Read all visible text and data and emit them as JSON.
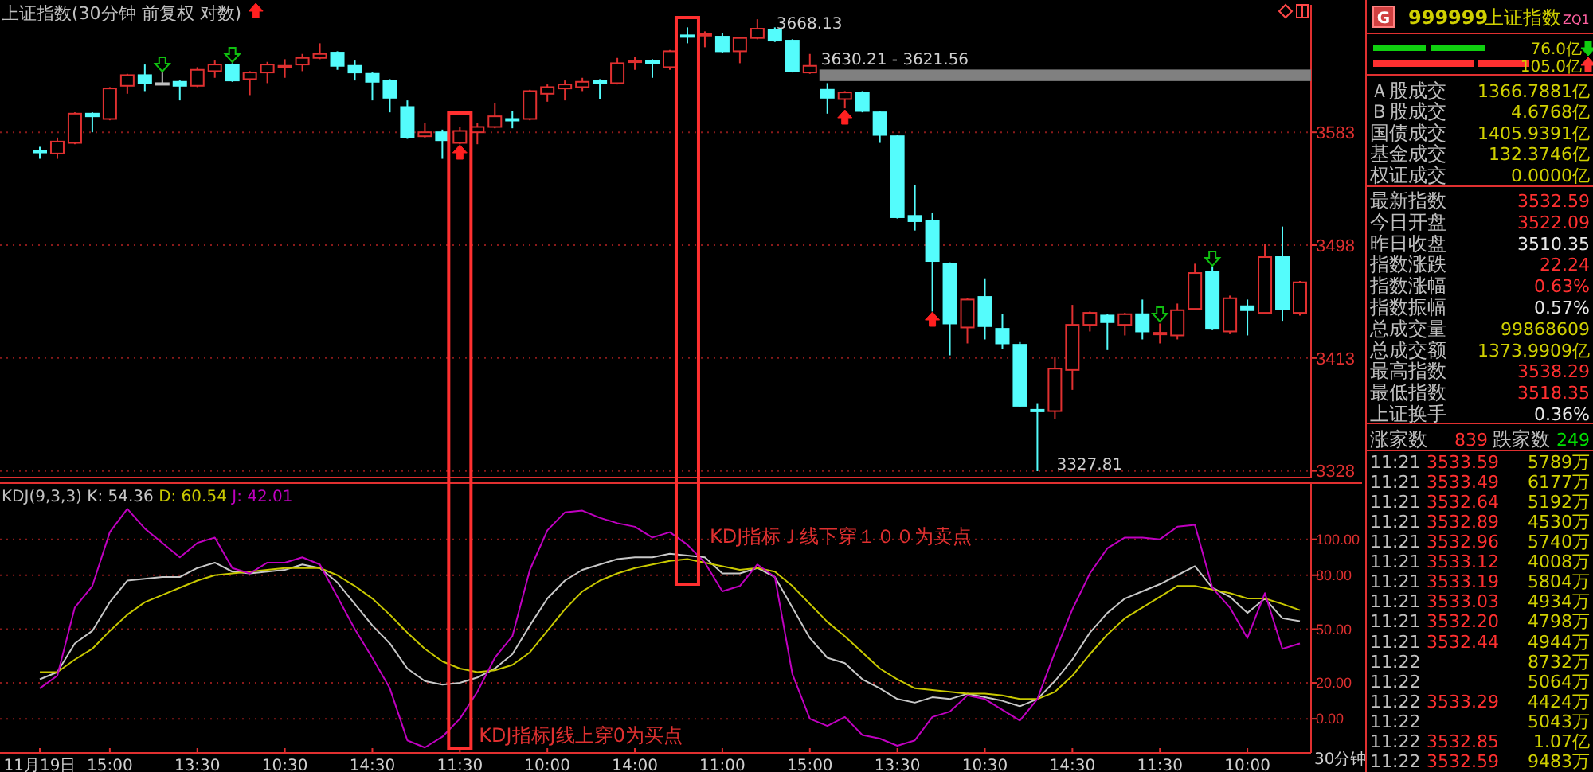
{
  "chart_data": [
    {
      "type": "candlestick",
      "title": "上证指数(30分钟 前复权 对数)",
      "categories": [
        null,
        null,
        null,
        null,
        null,
        null,
        null,
        null,
        null,
        null,
        null,
        null,
        null,
        null,
        null,
        null,
        null,
        null,
        null,
        null,
        null,
        null,
        null,
        null,
        null,
        null,
        null,
        null,
        null,
        null,
        null,
        null,
        null,
        null,
        null,
        null,
        null,
        null,
        null,
        null,
        null,
        null,
        null,
        null,
        null,
        null,
        null,
        null,
        null,
        null,
        null,
        null,
        null,
        null,
        null,
        null,
        null,
        null,
        null,
        null,
        null,
        null,
        null,
        null,
        null,
        null,
        null,
        null,
        null,
        null,
        null,
        null,
        null
      ],
      "ohlc": [
        [
          3569,
          3572,
          3563,
          3568
        ],
        [
          3567,
          3579,
          3563,
          3576
        ],
        [
          3575,
          3598,
          3574,
          3597
        ],
        [
          3597,
          3598,
          3583,
          3595
        ],
        [
          3593,
          3617,
          3592,
          3616
        ],
        [
          3618,
          3627,
          3612,
          3626
        ],
        [
          3626,
          3634,
          3614,
          3620
        ],
        [
          3620,
          3628,
          3620,
          3620
        ],
        [
          3621,
          3622,
          3607,
          3618
        ],
        [
          3618,
          3632,
          3617,
          3630
        ],
        [
          3629,
          3637,
          3624,
          3634
        ],
        [
          3634,
          3635,
          3621,
          3622
        ],
        [
          3623,
          3629,
          3611,
          3628
        ],
        [
          3628,
          3636,
          3620,
          3634
        ],
        [
          3632,
          3638,
          3624,
          3633
        ],
        [
          3634,
          3642,
          3629,
          3639
        ],
        [
          3639,
          3650,
          3638,
          3642
        ],
        [
          3643,
          3644,
          3630,
          3633
        ],
        [
          3633,
          3637,
          3622,
          3628
        ],
        [
          3627,
          3628,
          3607,
          3621
        ],
        [
          3622,
          3623,
          3598,
          3609
        ],
        [
          3602,
          3607,
          3578,
          3579
        ],
        [
          3580,
          3590,
          3579,
          3583
        ],
        [
          3583,
          3585,
          3563,
          3577
        ],
        [
          3575,
          3587,
          3574,
          3584
        ],
        [
          3583,
          3590,
          3574,
          3587
        ],
        [
          3587,
          3605,
          3586,
          3595
        ],
        [
          3593,
          3599,
          3586,
          3592
        ],
        [
          3593,
          3615,
          3592,
          3614
        ],
        [
          3612,
          3619,
          3606,
          3617
        ],
        [
          3616,
          3622,
          3607,
          3619
        ],
        [
          3617,
          3624,
          3614,
          3621
        ],
        [
          3622,
          3623,
          3608,
          3620
        ],
        [
          3620,
          3639,
          3619,
          3635
        ],
        [
          3636,
          3640,
          3630,
          3637
        ],
        [
          3637,
          3638,
          3624,
          3635
        ],
        [
          3632,
          3645,
          3630,
          3644
        ],
        [
          3656,
          3662,
          3650,
          3655
        ],
        [
          3656,
          3659,
          3647,
          3657
        ],
        [
          3655,
          3658,
          3643,
          3644
        ],
        [
          3644,
          3655,
          3635,
          3654
        ],
        [
          3654,
          3668.13,
          3653,
          3661
        ],
        [
          3660,
          3662,
          3651,
          3652
        ],
        [
          3652,
          3653,
          3628,
          3629
        ],
        [
          3628,
          3642,
          3627,
          3633
        ],
        [
          3615,
          3620,
          3597,
          3609
        ],
        [
          3608,
          3614,
          3601,
          3613
        ],
        [
          3613,
          3614,
          3598,
          3599
        ],
        [
          3598,
          3599,
          3575,
          3581
        ],
        [
          3580,
          3581,
          3518,
          3519
        ],
        [
          3520,
          3543,
          3509,
          3516
        ],
        [
          3516,
          3522,
          3448,
          3486
        ],
        [
          3484,
          3485,
          3415,
          3439
        ],
        [
          3436,
          3458,
          3424,
          3457
        ],
        [
          3459,
          3473,
          3427,
          3437
        ],
        [
          3435,
          3446,
          3420,
          3424
        ],
        [
          3423,
          3425,
          3376,
          3377
        ],
        [
          3374,
          3379,
          3327.81,
          3373
        ],
        [
          3373,
          3414,
          3367,
          3405
        ],
        [
          3404,
          3453,
          3389,
          3438
        ],
        [
          3438,
          3448,
          3433,
          3447
        ],
        [
          3445,
          3446,
          3419,
          3440
        ],
        [
          3438,
          3447,
          3430,
          3446
        ],
        [
          3446,
          3457,
          3427,
          3433
        ],
        [
          3431,
          3439,
          3424,
          3432
        ],
        [
          3430,
          3454,
          3427,
          3449
        ],
        [
          3450,
          3484,
          3449,
          3477
        ],
        [
          3478,
          3482,
          3434,
          3435
        ],
        [
          3433,
          3460,
          3431,
          3458
        ],
        [
          3452,
          3457,
          3430,
          3449
        ],
        [
          3447,
          3499,
          3446,
          3489
        ],
        [
          3489,
          3512,
          3441,
          3450
        ],
        [
          3447,
          3471,
          3445,
          3470
        ]
      ],
      "colors": [
        "#54fcfc",
        "#e03030",
        "#e03030",
        "#54fcfc",
        "#e03030",
        "#e03030",
        "#54fcfc",
        "#c0c0c0",
        "#54fcfc",
        "#e03030",
        "#e03030",
        "#54fcfc",
        "#e03030",
        "#e03030",
        "#e03030",
        "#e03030",
        "#e03030",
        "#54fcfc",
        "#54fcfc",
        "#54fcfc",
        "#54fcfc",
        "#54fcfc",
        "#e03030",
        "#54fcfc",
        "#e03030",
        "#e03030",
        "#e03030",
        "#54fcfc",
        "#e03030",
        "#e03030",
        "#e03030",
        "#e03030",
        "#54fcfc",
        "#e03030",
        "#e03030",
        "#54fcfc",
        "#e03030",
        "#54fcfc",
        "#e03030",
        "#54fcfc",
        "#e03030",
        "#e03030",
        "#54fcfc",
        "#54fcfc",
        "#e03030",
        "#54fcfc",
        "#e03030",
        "#54fcfc",
        "#54fcfc",
        "#54fcfc",
        "#54fcfc",
        "#54fcfc",
        "#54fcfc",
        "#e03030",
        "#54fcfc",
        "#54fcfc",
        "#54fcfc",
        "#54fcfc",
        "#e03030",
        "#e03030",
        "#e03030",
        "#54fcfc",
        "#e03030",
        "#54fcfc",
        "#e03030",
        "#e03030",
        "#e03030",
        "#54fcfc",
        "#e03030",
        "#54fcfc",
        "#e03030",
        "#54fcfc",
        "#e03030"
      ],
      "ylim": [
        3323,
        3679
      ],
      "yticks": [
        3328,
        3413,
        3498,
        3583
      ],
      "grid": "y",
      "tick_labels": "y",
      "bands": [
        {
          "axis": "y",
          "from": 3621.56,
          "to": 3630.21,
          "label": "3630.21 - 3621.56",
          "color": "#808080"
        }
      ],
      "annotations": [
        "3668.13",
        "3327.81"
      ]
    },
    {
      "type": "line",
      "legend_title": "KDJ(9,3,3)",
      "legend": "top left",
      "categories": [
        "11月19日",
        null,
        null,
        null,
        "15:00",
        null,
        null,
        null,
        null,
        "13:30",
        null,
        null,
        null,
        null,
        "10:30",
        null,
        null,
        null,
        null,
        "14:30",
        null,
        null,
        null,
        null,
        "11:30",
        null,
        null,
        null,
        null,
        "10:00",
        null,
        null,
        null,
        null,
        "14:00",
        null,
        null,
        null,
        null,
        "11:00",
        null,
        null,
        null,
        null,
        "15:00",
        null,
        null,
        null,
        null,
        "13:30",
        null,
        null,
        null,
        null,
        "10:30",
        null,
        null,
        null,
        null,
        "14:30",
        null,
        null,
        null,
        null,
        "11:30",
        null,
        null,
        null,
        null,
        "10:00",
        null,
        null,
        null
      ],
      "series": [
        {
          "name": "K: 54.36",
          "color": "#c8c8c8",
          "values": [
            22,
            26,
            42,
            49,
            65,
            77,
            78,
            79,
            79,
            84,
            87,
            82,
            81,
            82,
            83,
            86,
            84,
            76,
            64,
            52,
            42,
            28,
            21,
            19,
            20,
            23,
            28,
            36,
            52,
            67,
            77,
            83,
            86,
            89,
            90,
            90,
            92,
            91,
            90,
            81,
            81,
            84,
            79,
            62,
            45,
            34,
            31,
            22,
            17,
            11,
            9,
            12,
            11,
            14,
            12,
            10,
            7,
            11,
            21,
            33,
            48,
            59,
            67,
            71,
            75,
            80,
            85,
            73,
            68,
            59,
            67,
            56,
            54.36
          ]
        },
        {
          "name": "D: 60.54",
          "color": "#c8c800",
          "values": [
            26,
            26,
            33,
            39,
            49,
            58,
            65,
            69,
            73,
            77,
            80,
            81,
            82,
            83,
            84,
            84,
            84,
            80,
            74,
            67,
            58,
            48,
            39,
            32,
            28,
            26,
            27,
            30,
            37,
            49,
            61,
            71,
            77,
            81,
            84,
            86,
            88,
            89,
            87,
            85,
            83,
            84,
            82,
            74,
            64,
            54,
            46,
            37,
            28,
            22,
            17,
            16,
            15,
            14,
            14,
            13,
            11,
            11,
            15,
            24,
            36,
            47,
            56,
            62,
            68,
            74,
            74,
            72,
            70,
            67,
            67,
            64,
            60.54
          ]
        },
        {
          "name": "J: 42.01",
          "color": "#c000c0",
          "values": [
            17,
            24,
            62,
            74,
            104,
            117,
            106,
            98,
            90,
            98,
            101,
            84,
            81,
            87,
            87,
            90,
            86,
            68,
            50,
            34,
            17,
            -12,
            -16,
            -10,
            0,
            15,
            34,
            46,
            83,
            105,
            115,
            116,
            112,
            109,
            107,
            101,
            104,
            97,
            87,
            71,
            74,
            86,
            79,
            25,
            0,
            -4,
            1,
            -9,
            -11,
            -15,
            -12,
            1,
            4,
            13,
            11,
            5,
            -1,
            11,
            37,
            61,
            81,
            95,
            101,
            101,
            100,
            107,
            108,
            73,
            62,
            45,
            70,
            39,
            42.01
          ]
        }
      ],
      "ylim": [
        -19,
        130
      ],
      "yticks": [
        {
          "value": 0,
          "label": "0.00"
        },
        {
          "value": 20,
          "label": "20.00"
        },
        {
          "value": 50,
          "label": "50.00"
        },
        {
          "value": 80,
          "label": "80.00"
        },
        {
          "value": 100,
          "label": "100.00"
        }
      ],
      "grid": "y",
      "annotations": [
        "KDJ指标J线上穿0为买点",
        "KDJ指标Ｊ线下穿１００为卖点",
        "30分钟"
      ]
    },
    {
      "type": "other",
      "annotations": [
        "G",
        "999999",
        "上证指数",
        "ZQ1",
        "76.0亿",
        "105.0亿",
        "Ａ股成交",
        "1366.7881亿",
        "Ｂ股成交",
        "4.6768亿",
        "国债成交",
        "1405.9391亿",
        "基金成交",
        "132.3746亿",
        "权证成交",
        "0.0000亿",
        "最新指数",
        "3532.59",
        "今日开盘",
        "3522.09",
        "昨日收盘",
        "3510.35",
        "指数涨跌",
        "22.24",
        "指数涨幅",
        "0.63%",
        "指数振幅",
        "0.57%",
        "总成交量",
        "99868609",
        "总成交额",
        "1373.9909亿",
        "最高指数",
        "3538.29",
        "最低指数",
        "3518.35",
        "上证换手",
        "0.36%",
        "涨家数",
        "839",
        "跌家数",
        "249",
        "11:21",
        "3533.59",
        "5789万",
        "11:21",
        "3533.49",
        "6177万",
        "11:21",
        "3532.64",
        "5192万",
        "11:21",
        "3532.89",
        "4530万",
        "11:21",
        "3532.96",
        "5740万",
        "11:21",
        "3533.12",
        "4008万",
        "11:21",
        "3533.19",
        "5804万",
        "11:21",
        "3533.03",
        "4934万",
        "11:21",
        "3532.20",
        "4798万",
        "11:21",
        "3532.44",
        "4944万",
        "11:22",
        null,
        "8732万",
        "11:22",
        null,
        "5064万",
        "11:22",
        "3533.29",
        "4424万",
        "11:22",
        null,
        "5043万",
        "11:22",
        "3532.85",
        "1.07亿",
        "11:22",
        "3532.59",
        "9483万"
      ]
    }
  ]
}
